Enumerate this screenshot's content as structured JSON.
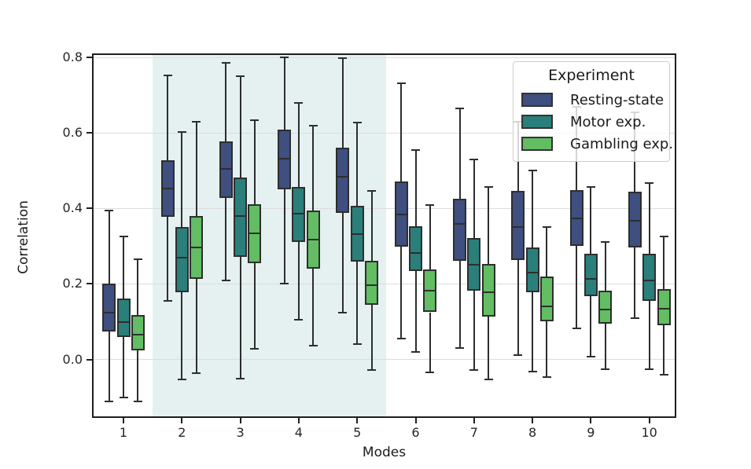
{
  "legend": {
    "title": "Experiment"
  },
  "chart_data": {
    "type": "boxplot",
    "title": "",
    "xlabel": "Modes",
    "ylabel": "Correlation",
    "categories": [
      "1",
      "2",
      "3",
      "4",
      "5",
      "6",
      "7",
      "8",
      "9",
      "10"
    ],
    "ytick_labels": [
      "0.0",
      "0.2",
      "0.4",
      "0.6",
      "0.8"
    ],
    "ytick_values": [
      0.0,
      0.2,
      0.4,
      0.6,
      0.8
    ],
    "ylim": [
      -0.155,
      0.811
    ],
    "grid": "horizontal",
    "grid_color": "#dcdcdc",
    "legend_position": "upper-right",
    "legend_title": "Experiment",
    "highlight_band": {
      "from_category_index": 1,
      "to_category_index": 4,
      "color": "#e4f1f0",
      "note": "pale teal band behind modes 2-5"
    },
    "box_edge_color": "#2e2e2e",
    "box_format": [
      "whislo",
      "q1",
      "median",
      "q3",
      "whishi"
    ],
    "series": [
      {
        "name": "Resting-state",
        "color": "#3e4f80",
        "boxes": [
          [
            -0.111,
            0.075,
            0.124,
            0.2,
            0.395
          ],
          [
            0.155,
            0.377,
            0.453,
            0.528,
            0.752
          ],
          [
            0.21,
            0.427,
            0.505,
            0.577,
            0.785
          ],
          [
            0.2,
            0.45,
            0.533,
            0.61,
            0.8
          ],
          [
            0.125,
            0.389,
            0.484,
            0.561,
            0.799
          ],
          [
            0.055,
            0.298,
            0.384,
            0.472,
            0.731
          ],
          [
            0.03,
            0.262,
            0.359,
            0.425,
            0.665
          ],
          [
            0.011,
            0.264,
            0.35,
            0.446,
            0.63
          ],
          [
            0.083,
            0.3,
            0.373,
            0.448,
            0.67
          ],
          [
            0.109,
            0.297,
            0.368,
            0.444,
            0.655
          ]
        ]
      },
      {
        "name": "Motor exp.",
        "color": "#2a7f7a",
        "boxes": [
          [
            -0.1,
            0.059,
            0.1,
            0.162,
            0.325
          ],
          [
            -0.053,
            0.179,
            0.269,
            0.35,
            0.602
          ],
          [
            -0.05,
            0.272,
            0.38,
            0.483,
            0.75
          ],
          [
            0.106,
            0.311,
            0.387,
            0.457,
            0.679
          ],
          [
            0.04,
            0.26,
            0.333,
            0.408,
            0.627
          ],
          [
            0.02,
            0.234,
            0.283,
            0.352,
            0.554
          ],
          [
            -0.028,
            0.182,
            0.252,
            0.321,
            0.53
          ],
          [
            -0.033,
            0.179,
            0.231,
            0.297,
            0.5
          ],
          [
            0.007,
            0.168,
            0.214,
            0.28,
            0.458
          ],
          [
            -0.026,
            0.156,
            0.21,
            0.28,
            0.467
          ]
        ]
      },
      {
        "name": "Gambling exp.",
        "color": "#62bd63",
        "boxes": [
          [
            -0.111,
            0.024,
            0.065,
            0.118,
            0.265
          ],
          [
            -0.036,
            0.214,
            0.297,
            0.38,
            0.629
          ],
          [
            0.028,
            0.255,
            0.335,
            0.411,
            0.635
          ],
          [
            0.036,
            0.241,
            0.318,
            0.394,
            0.62
          ],
          [
            -0.028,
            0.144,
            0.197,
            0.262,
            0.446
          ],
          [
            -0.035,
            0.125,
            0.182,
            0.238,
            0.409
          ],
          [
            -0.054,
            0.113,
            0.179,
            0.253,
            0.457
          ],
          [
            -0.047,
            0.102,
            0.14,
            0.22,
            0.35
          ],
          [
            -0.026,
            0.095,
            0.132,
            0.182,
            0.312
          ],
          [
            -0.04,
            0.09,
            0.134,
            0.186,
            0.326
          ]
        ]
      }
    ]
  }
}
